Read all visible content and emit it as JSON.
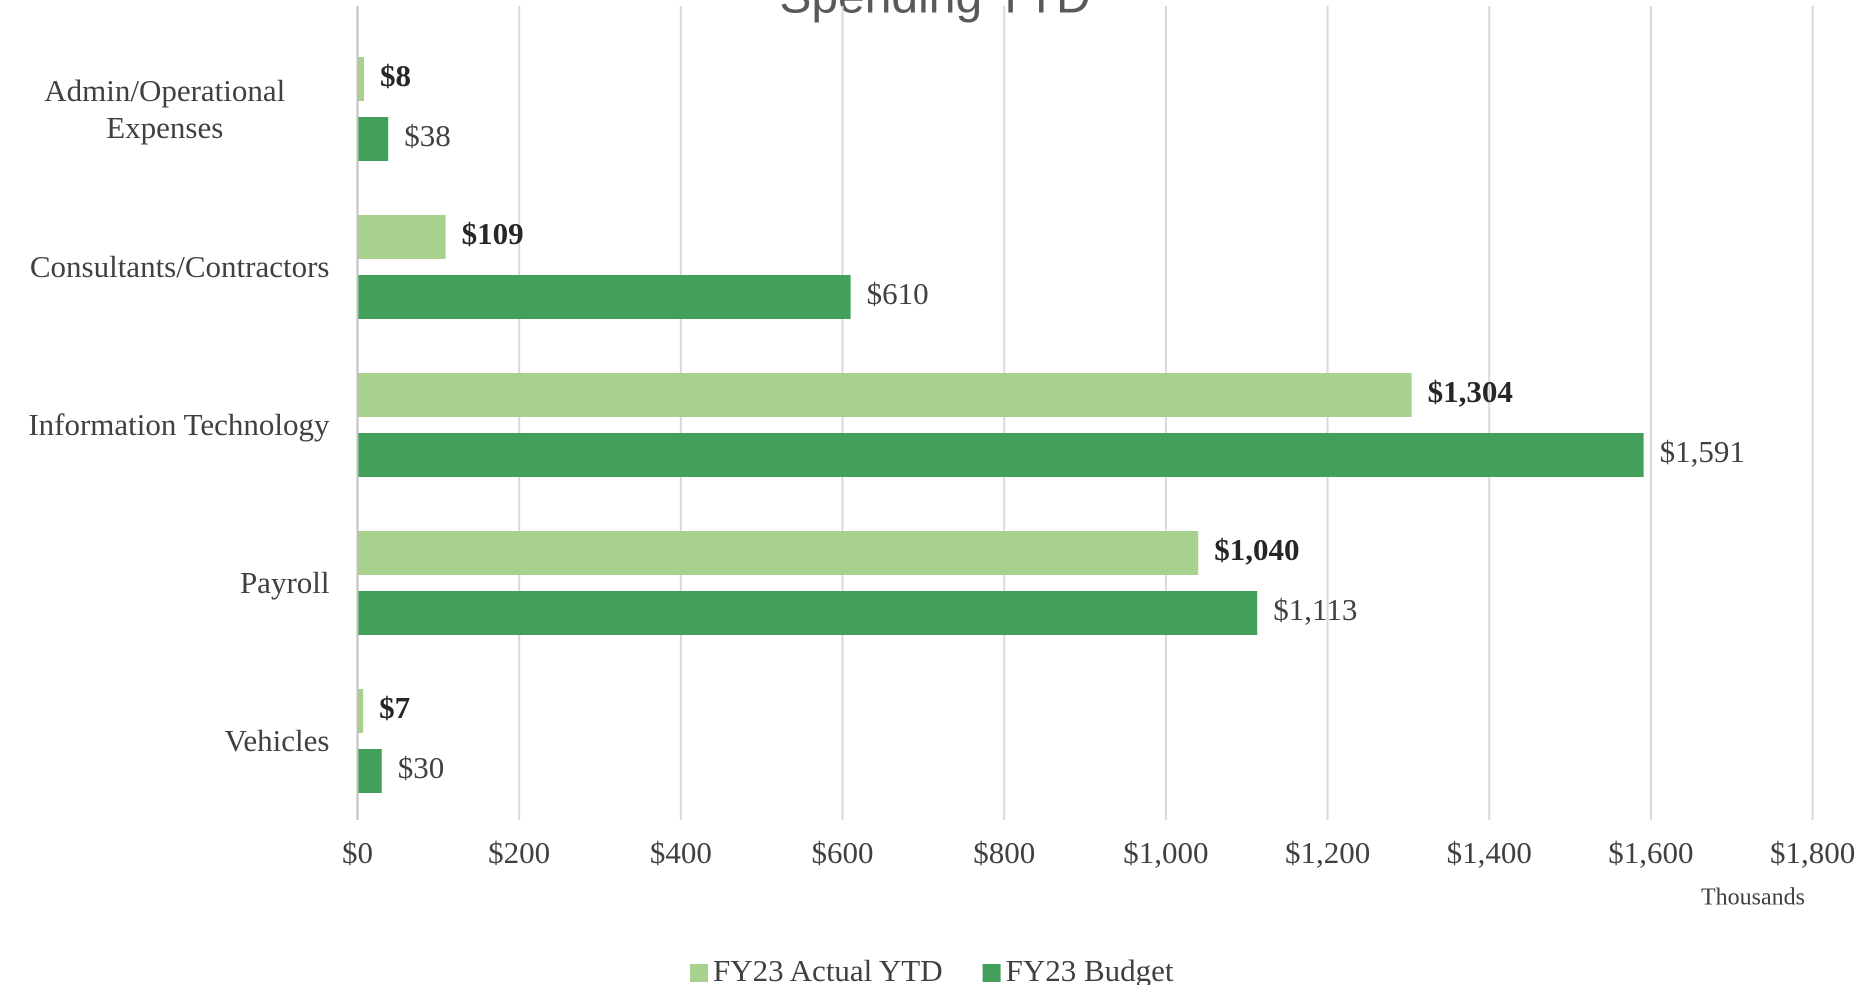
{
  "chart_data": {
    "type": "hbar",
    "title": "Spending YTD",
    "categories": [
      "Admin/Operational Expenses",
      "Consultants/Contractors",
      "Information Technology",
      "Payroll",
      "Vehicles"
    ],
    "series": [
      {
        "name": "FY23 Actual YTD",
        "color": "#a9d18e",
        "bold": true,
        "values": [
          8,
          109,
          1304,
          1040,
          7
        ],
        "value_labels": [
          "$8",
          "$109",
          "$1,304",
          "$1,040",
          "$7"
        ]
      },
      {
        "name": "FY23 Budget",
        "color": "#43a05a",
        "bold": false,
        "values": [
          38,
          610,
          1591,
          1113,
          30
        ],
        "value_labels": [
          "$38",
          "$610",
          "$1,591",
          "$1,113",
          "$30"
        ]
      }
    ],
    "xlim": [
      0,
      1800
    ],
    "xticks": [
      {
        "value": 0,
        "label": "$0"
      },
      {
        "value": 200,
        "label": "$200"
      },
      {
        "value": 400,
        "label": "$400"
      },
      {
        "value": 600,
        "label": "$600"
      },
      {
        "value": 800,
        "label": "$800"
      },
      {
        "value": 1000,
        "label": "$1,000"
      },
      {
        "value": 1200,
        "label": "$1,200"
      },
      {
        "value": 1400,
        "label": "$1,400"
      },
      {
        "value": 1600,
        "label": "$1,600"
      },
      {
        "value": 1800,
        "label": "$1,800"
      }
    ],
    "x_unit_label": "Thousands",
    "grid": true,
    "legend": "bottom"
  }
}
